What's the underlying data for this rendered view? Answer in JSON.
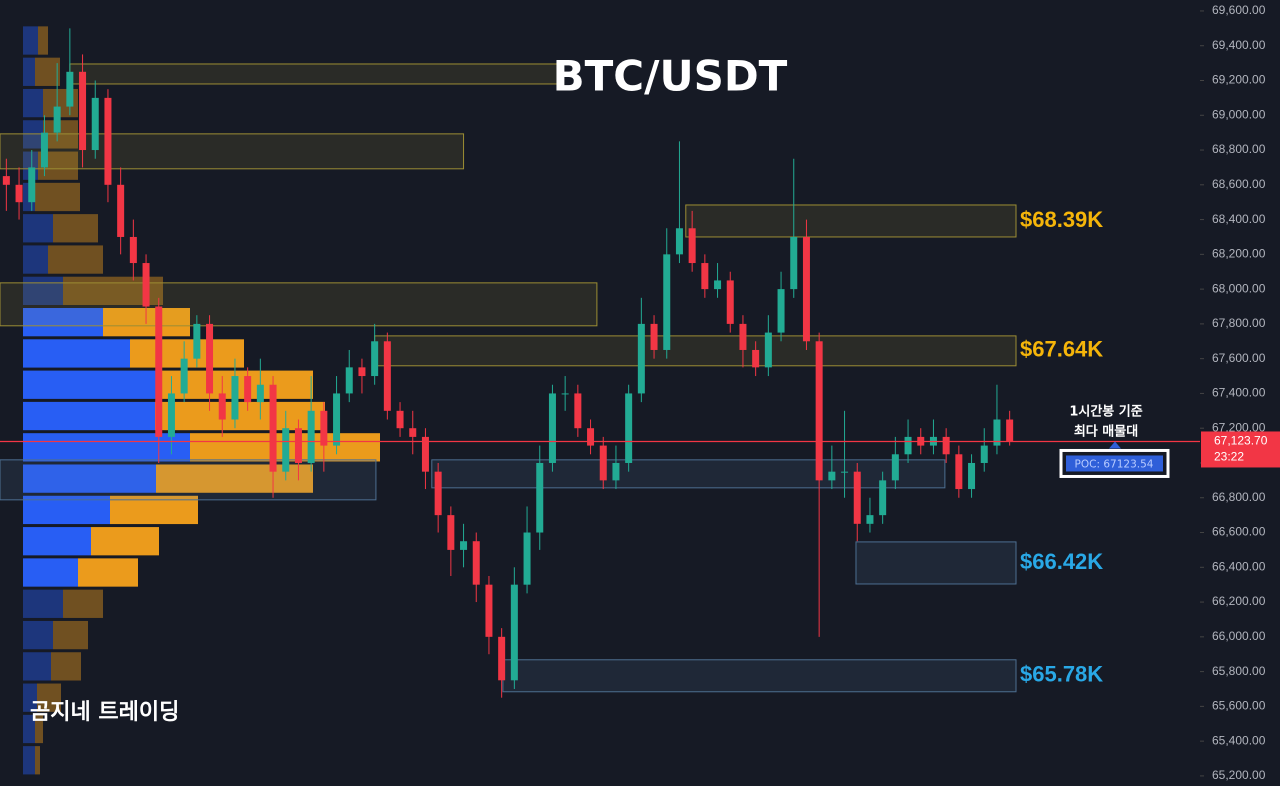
{
  "chart_data": {
    "type": "candlestick",
    "title": "BTC/USDT",
    "watermark": "곰지네 트레이딩",
    "annotation": [
      "1시간봉 기준",
      "최다 매물대"
    ],
    "up_color": "#22ab94",
    "down_color": "#f23645",
    "open": [
      68650,
      68600,
      68500,
      68700,
      68900,
      69050,
      69250,
      68800,
      69100,
      68600,
      68300,
      68150,
      67900,
      67150,
      67400,
      67600,
      67800,
      67400,
      67250,
      67500,
      67350,
      67450,
      66950,
      67200,
      67000,
      67300,
      67100,
      67400,
      67550,
      67500,
      67700,
      67300,
      67200,
      67150,
      66950,
      66700,
      66500,
      66550,
      66300,
      66000,
      65750,
      66300,
      66600,
      67000,
      67400,
      67400,
      67200,
      67100,
      66900,
      67000,
      67400,
      67800,
      67650,
      68200,
      68350,
      68150,
      68000,
      68050,
      67800,
      67650,
      67550,
      67750,
      68000,
      68300,
      67700,
      66900,
      66950,
      66950,
      66650,
      66700,
      66900,
      67050,
      67150,
      67100,
      67150,
      67050,
      66850,
      67000,
      67100,
      67250
    ],
    "high": [
      68750,
      68700,
      68800,
      69000,
      69300,
      69500,
      69350,
      69200,
      69150,
      68700,
      68400,
      68200,
      67950,
      67500,
      67700,
      67850,
      67850,
      67500,
      67600,
      67550,
      67600,
      67500,
      67300,
      67250,
      67500,
      67350,
      67500,
      67650,
      67600,
      67800,
      67750,
      67350,
      67300,
      67200,
      67000,
      66750,
      66650,
      66600,
      66350,
      66050,
      66400,
      66750,
      67100,
      67450,
      67500,
      67450,
      67250,
      67150,
      67100,
      67450,
      67950,
      67850,
      68350,
      68850,
      68450,
      68200,
      68150,
      68100,
      67850,
      67700,
      67850,
      68100,
      68750,
      68400,
      67750,
      67100,
      67300,
      67000,
      66800,
      66950,
      67150,
      67250,
      67200,
      67250,
      67200,
      67100,
      67050,
      67200,
      67450,
      67300
    ],
    "low": [
      68450,
      68400,
      68450,
      68650,
      68850,
      69000,
      68700,
      68750,
      68500,
      68200,
      68050,
      67800,
      67000,
      67050,
      67350,
      67550,
      67300,
      67150,
      67200,
      67300,
      67250,
      66800,
      66900,
      66900,
      66950,
      66950,
      67050,
      67350,
      67400,
      67450,
      67250,
      67150,
      67050,
      66850,
      66600,
      66350,
      66400,
      66200,
      65900,
      65650,
      65700,
      66250,
      66500,
      66950,
      67300,
      67150,
      67050,
      66850,
      66850,
      66950,
      67350,
      67600,
      67600,
      68150,
      68100,
      67950,
      67950,
      67750,
      67550,
      67500,
      67500,
      67700,
      67950,
      67650,
      66000,
      66850,
      66800,
      66550,
      66600,
      66650,
      66850,
      67000,
      67050,
      67050,
      67000,
      66800,
      66800,
      66950,
      67050,
      67100
    ],
    "close": [
      68600,
      68500,
      68700,
      68900,
      69050,
      69250,
      68800,
      69100,
      68600,
      68300,
      68150,
      67900,
      67150,
      67400,
      67600,
      67800,
      67400,
      67250,
      67500,
      67350,
      67450,
      66950,
      67200,
      67000,
      67300,
      67100,
      67400,
      67550,
      67500,
      67700,
      67300,
      67200,
      67150,
      66950,
      66700,
      66500,
      66550,
      66300,
      66000,
      65750,
      66300,
      66600,
      67000,
      67400,
      67400,
      67200,
      67100,
      66900,
      67000,
      67400,
      67800,
      67650,
      68200,
      68350,
      68150,
      68000,
      68050,
      67800,
      67650,
      67550,
      67750,
      68000,
      68300,
      67700,
      66900,
      66950,
      66950,
      66650,
      66700,
      66900,
      67050,
      67150,
      67100,
      67150,
      67050,
      66850,
      67000,
      67100,
      67250,
      67124
    ],
    "ylim": [
      65142,
      69663
    ],
    "yticks": [
      {
        "value": 65200,
        "label": "65,200.00"
      },
      {
        "value": 65400,
        "label": "65,400.00"
      },
      {
        "value": 65600,
        "label": "65,600.00"
      },
      {
        "value": 65800,
        "label": "65,800.00"
      },
      {
        "value": 66000,
        "label": "66,000.00"
      },
      {
        "value": 66200,
        "label": "66,200.00"
      },
      {
        "value": 66400,
        "label": "66,400.00"
      },
      {
        "value": 66600,
        "label": "66,600.00"
      },
      {
        "value": 66800,
        "label": "66,800.00"
      },
      {
        "value": 67000,
        "label": "67,000.00"
      },
      {
        "value": 67200,
        "label": "67,200.00"
      },
      {
        "value": 67400,
        "label": "67,400.00"
      },
      {
        "value": 67600,
        "label": "67,600.00"
      },
      {
        "value": 67800,
        "label": "67,800.00"
      },
      {
        "value": 68000,
        "label": "68,000.00"
      },
      {
        "value": 68200,
        "label": "68,200.00"
      },
      {
        "value": 68400,
        "label": "68,400.00"
      },
      {
        "value": 68600,
        "label": "68,600.00"
      },
      {
        "value": 68800,
        "label": "68,800.00"
      },
      {
        "value": 69000,
        "label": "69,000.00"
      },
      {
        "value": 69200,
        "label": "69,200.00"
      },
      {
        "value": 69400,
        "label": "69,400.00"
      },
      {
        "value": 69600,
        "label": "69,600.00"
      }
    ],
    "grid": false,
    "current_price": {
      "value": 67123.7,
      "label": "67,123.70",
      "time": "23:22",
      "color": "#f23645"
    },
    "poc": {
      "value": 67123.54,
      "label": "POC: 67123.54"
    },
    "volume_profile": {
      "bins": [
        65200,
        65380,
        65560,
        65740,
        65920,
        66100,
        66280,
        66460,
        66640,
        66820,
        67000,
        67180,
        67360,
        67540,
        67720,
        67900,
        68080,
        68260,
        68440,
        68620,
        68800,
        68980,
        69160,
        69340,
        69520
      ],
      "buy": [
        12,
        12,
        14,
        28,
        30,
        40,
        55,
        68,
        87,
        133,
        167,
        132,
        133,
        107,
        80,
        40,
        25,
        30,
        12,
        15,
        20,
        20,
        12,
        15
      ],
      "sell": [
        5,
        8,
        24,
        30,
        35,
        40,
        60,
        68,
        88,
        157,
        190,
        170,
        157,
        114,
        87,
        100,
        55,
        45,
        45,
        40,
        35,
        35,
        25,
        10
      ],
      "value_area": [
        66280,
        67900
      ],
      "buy_color": "#2962ff",
      "sell_color": "#f7a21b"
    },
    "zones": [
      {
        "low": 69180,
        "high": 69295,
        "from": 5.5,
        "to": 44.1,
        "kind": "supply"
      },
      {
        "low": 68692,
        "high": 68893,
        "from": 0,
        "to": 36.5,
        "kind": "supply"
      },
      {
        "low": 67789,
        "high": 68036,
        "from": 0,
        "to": 47,
        "kind": "supply"
      },
      {
        "low": 67559,
        "high": 67731,
        "from": 29.5,
        "to": 80,
        "kind": "supply",
        "label": "$67.64K"
      },
      {
        "low": 68300,
        "high": 68484,
        "from": 54,
        "to": 80,
        "kind": "supply",
        "label": "$68.39K"
      },
      {
        "low": 66788,
        "high": 67018,
        "from": 0,
        "to": 29.6,
        "kind": "demand"
      },
      {
        "low": 66857,
        "high": 67018,
        "from": 34,
        "to": 74.4,
        "kind": "demand"
      },
      {
        "low": 66304,
        "high": 66546,
        "from": 67.4,
        "to": 80,
        "kind": "demand",
        "label": "$66.42K"
      },
      {
        "low": 65684,
        "high": 65868,
        "from": 39.6,
        "to": 80,
        "kind": "demand",
        "label": "$65.78K"
      }
    ]
  }
}
